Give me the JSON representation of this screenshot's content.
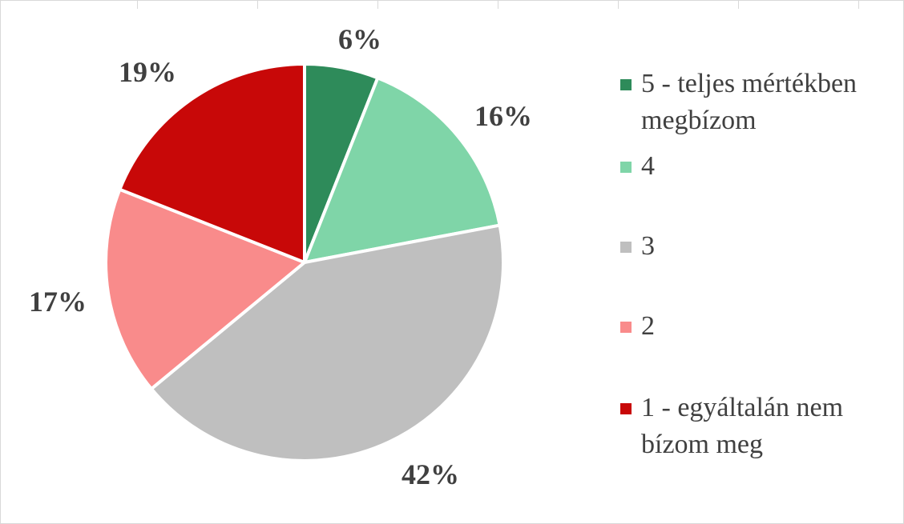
{
  "chart_data": {
    "type": "pie",
    "title": "",
    "legend_position": "right",
    "slices": [
      {
        "label": "5 - teljes mértékben megbízom",
        "value": 6,
        "display": "6%",
        "color": "#2e8b5a"
      },
      {
        "label": "4",
        "value": 16,
        "display": "16%",
        "color": "#7fd5a8"
      },
      {
        "label": "3",
        "value": 42,
        "display": "42%",
        "color": "#bfbfbf"
      },
      {
        "label": "2",
        "value": 17,
        "display": "17%",
        "color": "#f98b8b"
      },
      {
        "label": "1 - egyáltalán nem bízom meg",
        "value": 19,
        "display": "19%",
        "color": "#c80808"
      }
    ],
    "legend": [
      {
        "lines": [
          "5 - teljes mértékben",
          "megbízom"
        ],
        "color": "#2e8b5a"
      },
      {
        "lines": [
          "4"
        ],
        "color": "#7fd5a8"
      },
      {
        "lines": [
          "3"
        ],
        "color": "#bfbfbf"
      },
      {
        "lines": [
          "2"
        ],
        "color": "#f98b8b"
      },
      {
        "lines": [
          "1 - egyáltalán nem",
          "bízom meg"
        ],
        "color": "#c80808"
      }
    ]
  }
}
